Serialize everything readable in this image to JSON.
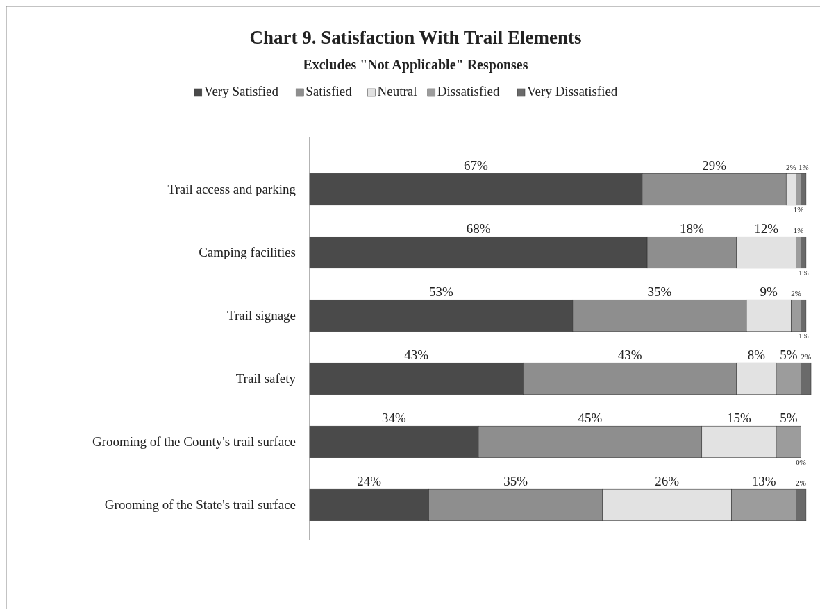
{
  "chart_data": {
    "type": "bar",
    "orientation": "horizontal",
    "stacked": true,
    "title": "Chart 9. Satisfaction With Trail Elements",
    "subtitle": "Excludes \"Not Applicable\" Responses",
    "categories": [
      "Trail access and parking",
      "Camping facilities",
      "Trail signage",
      "Trail safety",
      "Grooming of the County's trail surface",
      "Grooming of the State's trail surface"
    ],
    "series": [
      {
        "name": "Very Satisfied",
        "color": "#4a4a4a",
        "values": [
          67,
          68,
          53,
          43,
          34,
          24
        ],
        "value_labels": [
          "67%",
          "68%",
          "53%",
          "43%",
          "34%",
          "24%"
        ]
      },
      {
        "name": "Satisfied",
        "color": "#8e8e8e",
        "values": [
          29,
          18,
          35,
          43,
          45,
          35
        ],
        "value_labels": [
          "29%",
          "18%",
          "35%",
          "43%",
          "45%",
          "35%"
        ]
      },
      {
        "name": "Neutral",
        "color": "#e2e2e2",
        "values": [
          2,
          12,
          9,
          8,
          15,
          26
        ],
        "value_labels": [
          "2%",
          "12%",
          "9%",
          "8%",
          "15%",
          "26%"
        ]
      },
      {
        "name": "Dissatisfied",
        "color": "#9c9c9c",
        "values": [
          1,
          1,
          2,
          5,
          5,
          13
        ],
        "value_labels": [
          "1%",
          "1%",
          "2%",
          "5%",
          "5%",
          "13%"
        ]
      },
      {
        "name": "Very Dissatisfied",
        "color": "#6a6a6a",
        "values": [
          1,
          1,
          1,
          2,
          0,
          2
        ],
        "value_labels": [
          "1%",
          "1%",
          "1%",
          "2%",
          "0%",
          "2%"
        ]
      }
    ],
    "legend": "top",
    "grid": false
  }
}
